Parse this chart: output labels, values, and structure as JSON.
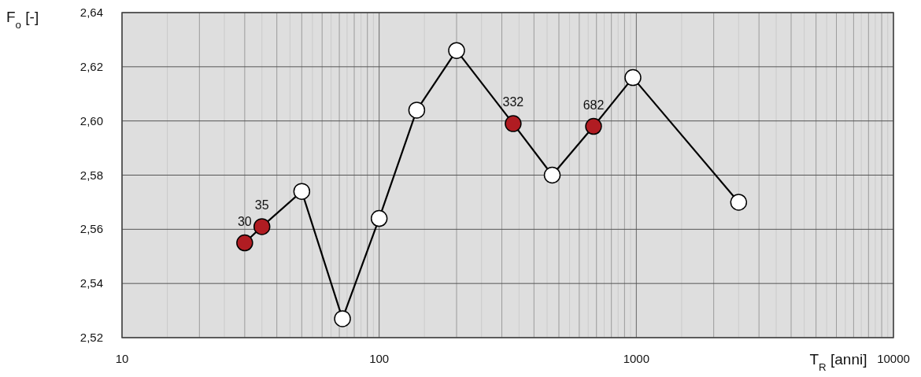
{
  "chart_data": {
    "type": "line",
    "xlabel": "T$_{R}$ [anni]",
    "ylabel": "F$_{o}$ [-]",
    "x": [
      30,
      35,
      50,
      72,
      100,
      140,
      200,
      332,
      471,
      682,
      970,
      2500
    ],
    "series": [
      {
        "color": "#000000",
        "values": [
          2.555,
          2.561,
          2.574,
          2.527,
          2.564,
          2.604,
          2.626,
          2.599,
          2.58,
          2.598,
          2.616,
          2.57
        ],
        "colors": [
          "#b01c22",
          "#b01c22",
          "#ffffff",
          "#ffffff",
          "#ffffff",
          "#ffffff",
          "#ffffff",
          "#b01c22",
          "#ffffff",
          "#b01c22",
          "#ffffff",
          "#ffffff"
        ]
      }
    ],
    "log": "x",
    "xlim": [
      10,
      10000
    ],
    "xticks": [
      10,
      100,
      1000,
      10000
    ],
    "ylim": [
      2.52,
      2.64
    ],
    "yticks": [
      {
        "value": 2.52,
        "label": "2,52"
      },
      {
        "value": 2.54,
        "label": "2,54"
      },
      {
        "value": 2.56,
        "label": "2,56"
      },
      {
        "value": 2.58,
        "label": "2,58"
      },
      {
        "value": 2.6,
        "label": "2,60"
      },
      {
        "value": 2.62,
        "label": "2,62"
      },
      {
        "value": 2.64,
        "label": "2,64"
      }
    ],
    "grid": true,
    "marker": "circle",
    "line_style": "solid",
    "annotations": [
      {
        "text": "30",
        "x": 30,
        "y": 2.555
      },
      {
        "text": "35",
        "x": 35,
        "y": 2.561
      },
      {
        "text": "332",
        "x": 332,
        "y": 2.599
      },
      {
        "text": "682",
        "x": 682,
        "y": 2.598
      }
    ]
  }
}
